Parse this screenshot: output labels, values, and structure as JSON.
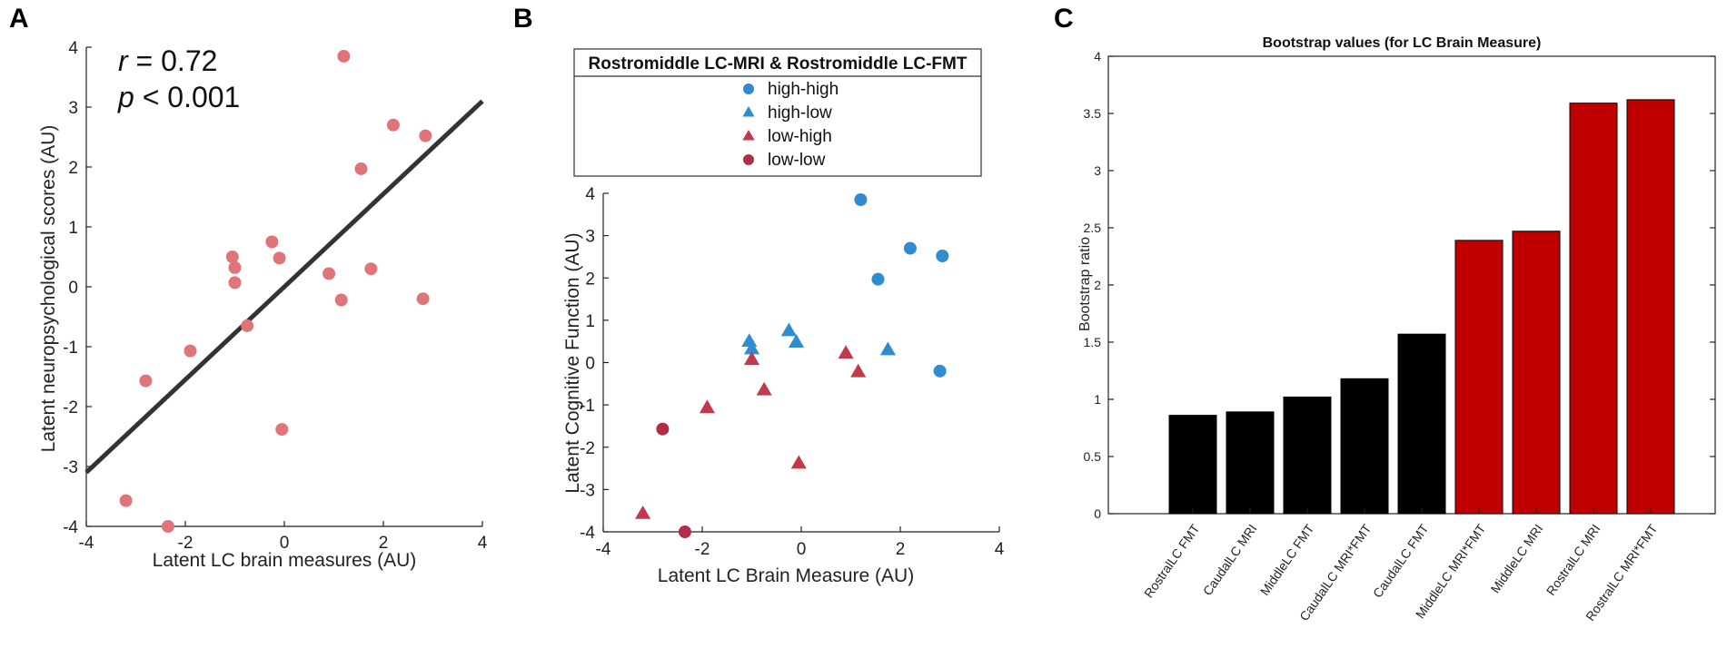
{
  "panel_labels": [
    "A",
    "B",
    "C"
  ],
  "colors": {
    "pink": "#e07579",
    "blue": "#2e8ccf",
    "red_marker": "#c0394d",
    "dark_red": "#b02e47",
    "bar_black": "#000000",
    "bar_red": "#c00000",
    "fit_line": "#333333"
  },
  "stats": {
    "r_label": "r",
    "r_value": " = 0.72",
    "p_label": "p",
    "p_value": " < 0.001"
  },
  "legend": {
    "title": "Rostromiddle LC-MRI & Rostromiddle LC-FMT",
    "entries": [
      {
        "label": "high-high",
        "marker": "circle",
        "color_key": "blue"
      },
      {
        "label": "high-low",
        "marker": "triangle",
        "color_key": "blue"
      },
      {
        "label": "low-high",
        "marker": "triangle",
        "color_key": "red_marker"
      },
      {
        "label": "low-low",
        "marker": "circle",
        "color_key": "dark_red"
      }
    ]
  },
  "chart_data": [
    {
      "panel": "A",
      "type": "scatter",
      "xlabel": "Latent LC brain measures (AU)",
      "ylabel": "Latent neuropsychological scores (AU)",
      "xlim": [
        -4,
        4
      ],
      "ylim": [
        -4,
        4
      ],
      "xticks": [
        -4,
        -2,
        0,
        2,
        4
      ],
      "yticks": [
        -4,
        -3,
        -2,
        -1,
        0,
        1,
        2,
        3,
        4
      ],
      "fit_line": {
        "x": [
          -4,
          4
        ],
        "y": [
          -3.1,
          3.1
        ]
      },
      "points": [
        {
          "x": 1.2,
          "y": 3.85
        },
        {
          "x": 2.2,
          "y": 2.7
        },
        {
          "x": 2.85,
          "y": 2.52
        },
        {
          "x": 1.55,
          "y": 1.97
        },
        {
          "x": -0.25,
          "y": 0.75
        },
        {
          "x": -1.05,
          "y": 0.5
        },
        {
          "x": -0.1,
          "y": 0.48
        },
        {
          "x": -1.0,
          "y": 0.32
        },
        {
          "x": 1.75,
          "y": 0.3
        },
        {
          "x": 0.9,
          "y": 0.22
        },
        {
          "x": -1.0,
          "y": 0.07
        },
        {
          "x": 1.15,
          "y": -0.22
        },
        {
          "x": 2.8,
          "y": -0.2
        },
        {
          "x": -0.75,
          "y": -0.65
        },
        {
          "x": -1.9,
          "y": -1.07
        },
        {
          "x": -2.8,
          "y": -1.57
        },
        {
          "x": -0.05,
          "y": -2.38
        },
        {
          "x": -3.2,
          "y": -3.57
        },
        {
          "x": -2.35,
          "y": -4.0
        }
      ]
    },
    {
      "panel": "B",
      "type": "scatter",
      "xlabel": "Latent LC Brain Measure (AU)",
      "ylabel": "Latent Cognitive Function (AU)",
      "xlim": [
        -4,
        4
      ],
      "ylim": [
        -4,
        4
      ],
      "xticks": [
        -4,
        -2,
        0,
        2,
        4
      ],
      "yticks": [
        -4,
        -3,
        -2,
        -1,
        0,
        1,
        2,
        3,
        4
      ],
      "series": [
        {
          "name": "high-high",
          "marker": "circle",
          "color_key": "blue",
          "points": [
            {
              "x": 1.2,
              "y": 3.85
            },
            {
              "x": 2.2,
              "y": 2.7
            },
            {
              "x": 2.85,
              "y": 2.52
            },
            {
              "x": 1.55,
              "y": 1.97
            },
            {
              "x": 2.8,
              "y": -0.2
            }
          ]
        },
        {
          "name": "high-low",
          "marker": "triangle",
          "color_key": "blue",
          "points": [
            {
              "x": -0.25,
              "y": 0.75
            },
            {
              "x": -1.05,
              "y": 0.5
            },
            {
              "x": -0.1,
              "y": 0.48
            },
            {
              "x": -1.0,
              "y": 0.32
            },
            {
              "x": 1.75,
              "y": 0.3
            }
          ]
        },
        {
          "name": "low-high",
          "marker": "triangle",
          "color_key": "red_marker",
          "points": [
            {
              "x": 0.9,
              "y": 0.22
            },
            {
              "x": -1.0,
              "y": 0.07
            },
            {
              "x": 1.15,
              "y": -0.22
            },
            {
              "x": -0.75,
              "y": -0.65
            },
            {
              "x": -1.9,
              "y": -1.07
            },
            {
              "x": -0.05,
              "y": -2.38
            },
            {
              "x": -3.2,
              "y": -3.57
            }
          ]
        },
        {
          "name": "low-low",
          "marker": "circle",
          "color_key": "dark_red",
          "points": [
            {
              "x": -2.8,
              "y": -1.57
            },
            {
              "x": -2.35,
              "y": -4.0
            }
          ]
        }
      ]
    },
    {
      "panel": "C",
      "type": "bar",
      "title": "Bootstrap values (for LC Brain Measure)",
      "xlabel": "",
      "ylabel": "Bootstrap ratio",
      "ylim": [
        0,
        4
      ],
      "yticks": [
        0,
        0.5,
        1,
        1.5,
        2,
        2.5,
        3,
        3.5,
        4
      ],
      "categories": [
        "RostralLC FMT",
        "CaudalLC MRI",
        "MiddleLC FMT",
        "CaudalLC MRI*FMT",
        "CaudalLC FMT",
        "MiddleLC MRI*FMT",
        "MiddleLC MRI",
        "RostralLC MRI",
        "RostralLC MRI*FMT"
      ],
      "values": [
        0.86,
        0.89,
        1.02,
        1.18,
        1.57,
        2.39,
        2.47,
        3.59,
        3.62
      ],
      "bar_colors": [
        "bar_black",
        "bar_black",
        "bar_black",
        "bar_black",
        "bar_black",
        "bar_red",
        "bar_red",
        "bar_red",
        "bar_red"
      ]
    }
  ]
}
